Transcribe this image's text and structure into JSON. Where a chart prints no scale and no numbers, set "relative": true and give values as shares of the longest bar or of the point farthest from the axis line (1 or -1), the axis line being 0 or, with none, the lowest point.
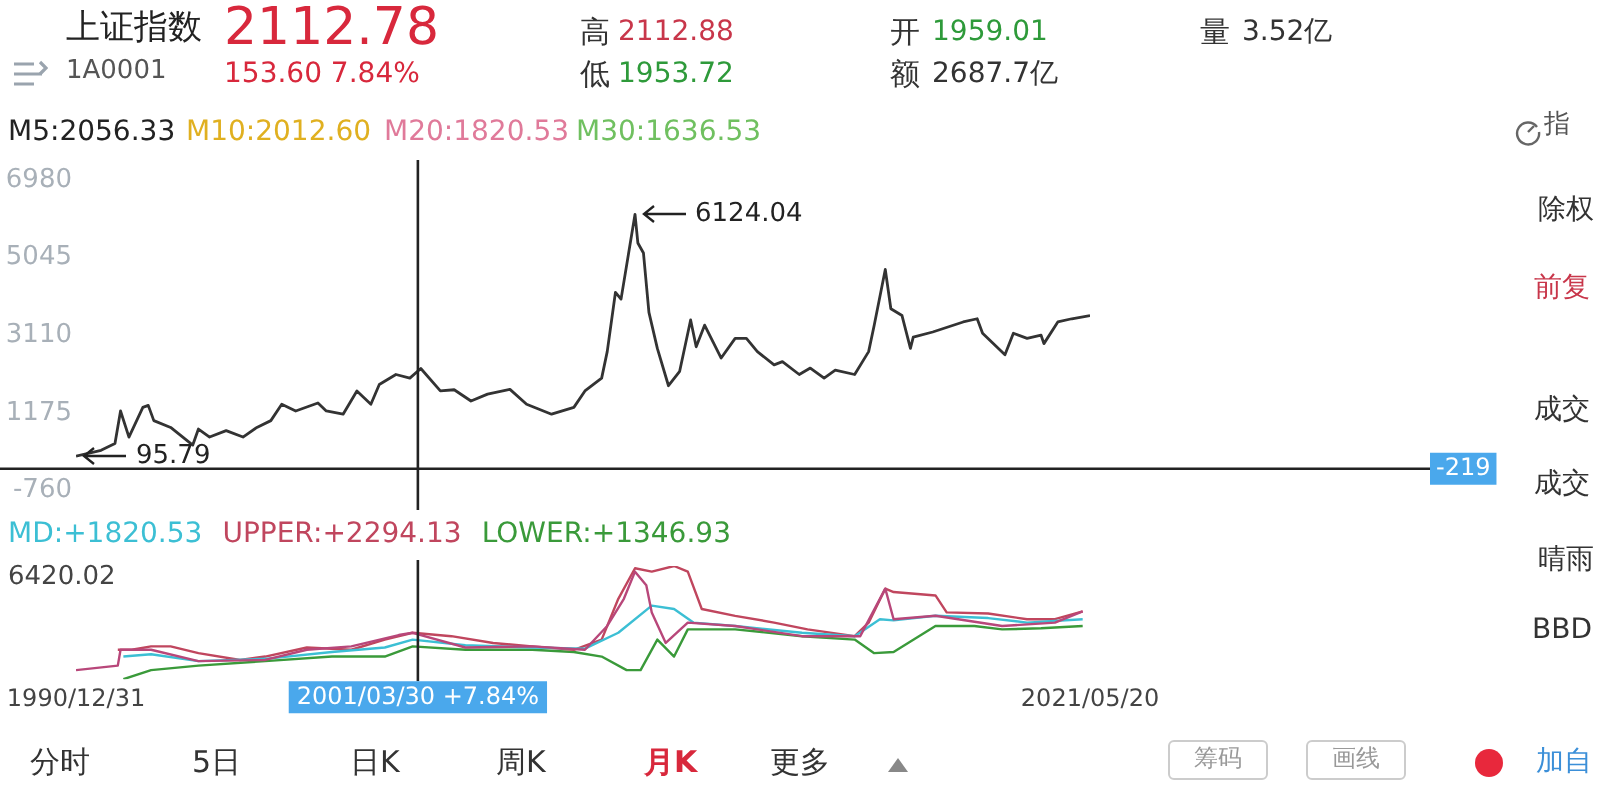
{
  "chart_data": [
    {
      "type": "line",
      "title": "上证指数",
      "annotations": [
        "1A0001",
        "2112.78",
        "153.60 7.84%",
        "高",
        "2112.88",
        "低",
        "1953.72",
        "开",
        "1959.01",
        "额",
        "2687.7亿",
        "量",
        "3.52亿",
        "M5:2056.33",
        "M10:2012.60",
        "M20:1820.53",
        "M30:1636.53",
        "指",
        "除权",
        "前复",
        "成交",
        "成交",
        "晴雨",
        "BBD",
        "分时",
        "5日",
        "日K",
        "周K",
        "月K",
        "更多",
        "筹码",
        "画线",
        "加自",
        {
          "text": "6124.04",
          "x": "2007-10",
          "y": 6124.04
        },
        {
          "text": "95.79",
          "x": "1990-12-31",
          "y": 95.79
        }
      ],
      "x": [
        "1990-12-31",
        "1991-10",
        "1992-03",
        "1992-05",
        "1992-08",
        "1993-01",
        "1993-03",
        "1993-05",
        "1993-11",
        "1994-07",
        "1994-09",
        "1995-01",
        "1995-07",
        "1996-01",
        "1996-06",
        "1996-11",
        "1997-03",
        "1997-08",
        "1998-04",
        "1998-07",
        "1999-01",
        "1999-06",
        "1999-11",
        "2000-02",
        "2000-08",
        "2001-01",
        "2001-05",
        "2001-12",
        "2002-05",
        "2002-11",
        "2003-05",
        "2004-01",
        "2004-07",
        "2005-04",
        "2005-12",
        "2006-04",
        "2006-10",
        "2006-12",
        "2007-03",
        "2007-05",
        "2007-10",
        "2007-11",
        "2008-01",
        "2008-03",
        "2008-06",
        "2008-10",
        "2009-02",
        "2009-06",
        "2009-08",
        "2009-11",
        "2010-05",
        "2010-10",
        "2011-02",
        "2011-06",
        "2011-12",
        "2012-03",
        "2012-09",
        "2013-01",
        "2013-06",
        "2013-10",
        "2014-05",
        "2014-10",
        "2014-12",
        "2015-04",
        "2015-06",
        "2015-10",
        "2016-01",
        "2016-02",
        "2016-09",
        "2017-08",
        "2018-01",
        "2018-03",
        "2018-11",
        "2019-02",
        "2019-07",
        "2019-12",
        "2020-01",
        "2020-06",
        "2020-11",
        "2021-05-20"
      ],
      "series": [
        {
          "color": "#333333",
          "values": [
            95.79,
            240,
            410,
            1220,
            570,
            1310,
            1360,
            980,
            810,
            370,
            770,
            570,
            730,
            570,
            810,
            980,
            1390,
            1220,
            1420,
            1220,
            1140,
            1720,
            1390,
            1880,
            2130,
            2040,
            2280,
            1720,
            1750,
            1470,
            1640,
            1760,
            1390,
            1140,
            1310,
            1720,
            2040,
            2700,
            4180,
            4010,
            6124.04,
            5410,
            5160,
            3680,
            2780,
            1850,
            2210,
            3490,
            2820,
            3360,
            2540,
            3030,
            3030,
            2700,
            2370,
            2450,
            2130,
            2290,
            2040,
            2240,
            2130,
            2700,
            3360,
            4750,
            3770,
            3600,
            2780,
            3060,
            3190,
            3440,
            3520,
            3160,
            2620,
            3160,
            3030,
            3110,
            2900,
            3440,
            3520,
            3600
          ]
        }
      ],
      "xlim": [
        "1990-12-31",
        "2021-05-20"
      ],
      "ylim": [
        -760,
        6980
      ],
      "yticks": [
        -760,
        1175,
        3110,
        5045,
        6980
      ],
      "tick_labels": "y",
      "ref_lines": [
        {
          "axis": "y",
          "value": -219,
          "label": "-219"
        },
        {
          "axis": "x",
          "value": "2001-03-30"
        }
      ]
    },
    {
      "type": "line",
      "relative": true,
      "tick_labels": "x",
      "annotations": [
        "6420.02"
      ],
      "xlim": [
        "1990-12-31",
        "2021-05-20"
      ],
      "xticks": [
        {
          "value": "1990-12-31",
          "label": "1990/12/31"
        },
        {
          "value": "2021-05-20",
          "label": "2021/05/20"
        }
      ],
      "ref_lines": [
        {
          "axis": "x",
          "value": "2001-03-30",
          "label": "2001/03/30 +7.84%"
        }
      ],
      "series": [
        {
          "color": "#b8477a",
          "x": [
            "1990-12-31",
            "1992-04",
            "1992-05",
            "1993-04",
            "1994-09",
            "1996-09",
            "1997-12",
            "1999-04",
            "2000-09",
            "2001-02",
            "2002-09",
            "2004-09",
            "2006-04",
            "2006-12",
            "2007-06",
            "2007-10",
            "2008-02",
            "2008-04",
            "2008-09",
            "2009-05",
            "2010-10",
            "2012-10",
            "2014-07",
            "2015-04",
            "2015-07",
            "2016-10",
            "2018-10",
            "2020-05",
            "2021-03"
          ],
          "values": [
            0.08,
            0.12,
            0.26,
            0.26,
            0.16,
            0.17,
            0.26,
            0.29,
            0.39,
            0.41,
            0.28,
            0.29,
            0.26,
            0.47,
            0.71,
            0.95,
            0.83,
            0.59,
            0.32,
            0.5,
            0.47,
            0.38,
            0.38,
            0.8,
            0.53,
            0.56,
            0.47,
            0.5,
            0.6
          ]
        },
        {
          "name": "MD:+1820.53",
          "color": "#3cbfd4",
          "x": [
            "1992-06",
            "1993-04",
            "1994-09",
            "1996-09",
            "1998-09",
            "2000-04",
            "2001-02",
            "2002-09",
            "2004-09",
            "2006-04",
            "2007-04",
            "2008-04",
            "2008-12",
            "2009-07",
            "2010-10",
            "2012-10",
            "2014-05",
            "2015-02",
            "2015-07",
            "2016-10",
            "2018-05",
            "2019-07",
            "2021-03"
          ],
          "values": [
            0.2,
            0.22,
            0.16,
            0.18,
            0.24,
            0.28,
            0.35,
            0.3,
            0.28,
            0.27,
            0.41,
            0.65,
            0.62,
            0.5,
            0.47,
            0.41,
            0.38,
            0.53,
            0.52,
            0.56,
            0.54,
            0.5,
            0.53
          ]
        },
        {
          "name": "UPPER:+2294.13",
          "color": "#c0465e",
          "x": [
            "1992-04",
            "1992-09",
            "1993-04",
            "1993-11",
            "1994-09",
            "1995-12",
            "1996-09",
            "1997-12",
            "1999-04",
            "2000-04",
            "2001-02",
            "2002-04",
            "2003-07",
            "2004-09",
            "2005-12",
            "2006-10",
            "2007-04",
            "2007-10",
            "2008-04",
            "2008-12",
            "2009-05",
            "2009-10",
            "2010-10",
            "2011-12",
            "2012-12",
            "2014-05",
            "2014-10",
            "2015-04",
            "2015-07",
            "2016-10",
            "2017-02",
            "2018-05",
            "2019-07",
            "2020-05",
            "2021-03"
          ],
          "values": [
            0.26,
            0.26,
            0.29,
            0.29,
            0.23,
            0.17,
            0.2,
            0.28,
            0.26,
            0.35,
            0.41,
            0.38,
            0.32,
            0.29,
            0.26,
            0.35,
            0.71,
            0.98,
            0.95,
            1,
            0.95,
            0.62,
            0.56,
            0.5,
            0.44,
            0.38,
            0.5,
            0.8,
            0.77,
            0.74,
            0.59,
            0.58,
            0.53,
            0.53,
            0.6
          ]
        },
        {
          "name": "LOWER:+1346.93",
          "color": "#3a9a3a",
          "x": [
            "1992-06",
            "1993-04",
            "1994-09",
            "1996-09",
            "1998-09",
            "2000-04",
            "2001-02",
            "2002-09",
            "2004-09",
            "2005-12",
            "2006-10",
            "2007-07",
            "2007-12",
            "2008-06",
            "2008-12",
            "2009-05",
            "2010-10",
            "2012-10",
            "2014-05",
            "2014-12",
            "2015-07",
            "2016-10",
            "2017-12",
            "2018-10",
            "2019-12",
            "2021-03"
          ],
          "values": [
            0,
            0.08,
            0.12,
            0.16,
            0.2,
            0.2,
            0.29,
            0.26,
            0.26,
            0.24,
            0.2,
            0.08,
            0.08,
            0.35,
            0.2,
            0.44,
            0.44,
            0.38,
            0.35,
            0.23,
            0.24,
            0.47,
            0.47,
            0.44,
            0.45,
            0.47
          ]
        }
      ]
    }
  ]
}
